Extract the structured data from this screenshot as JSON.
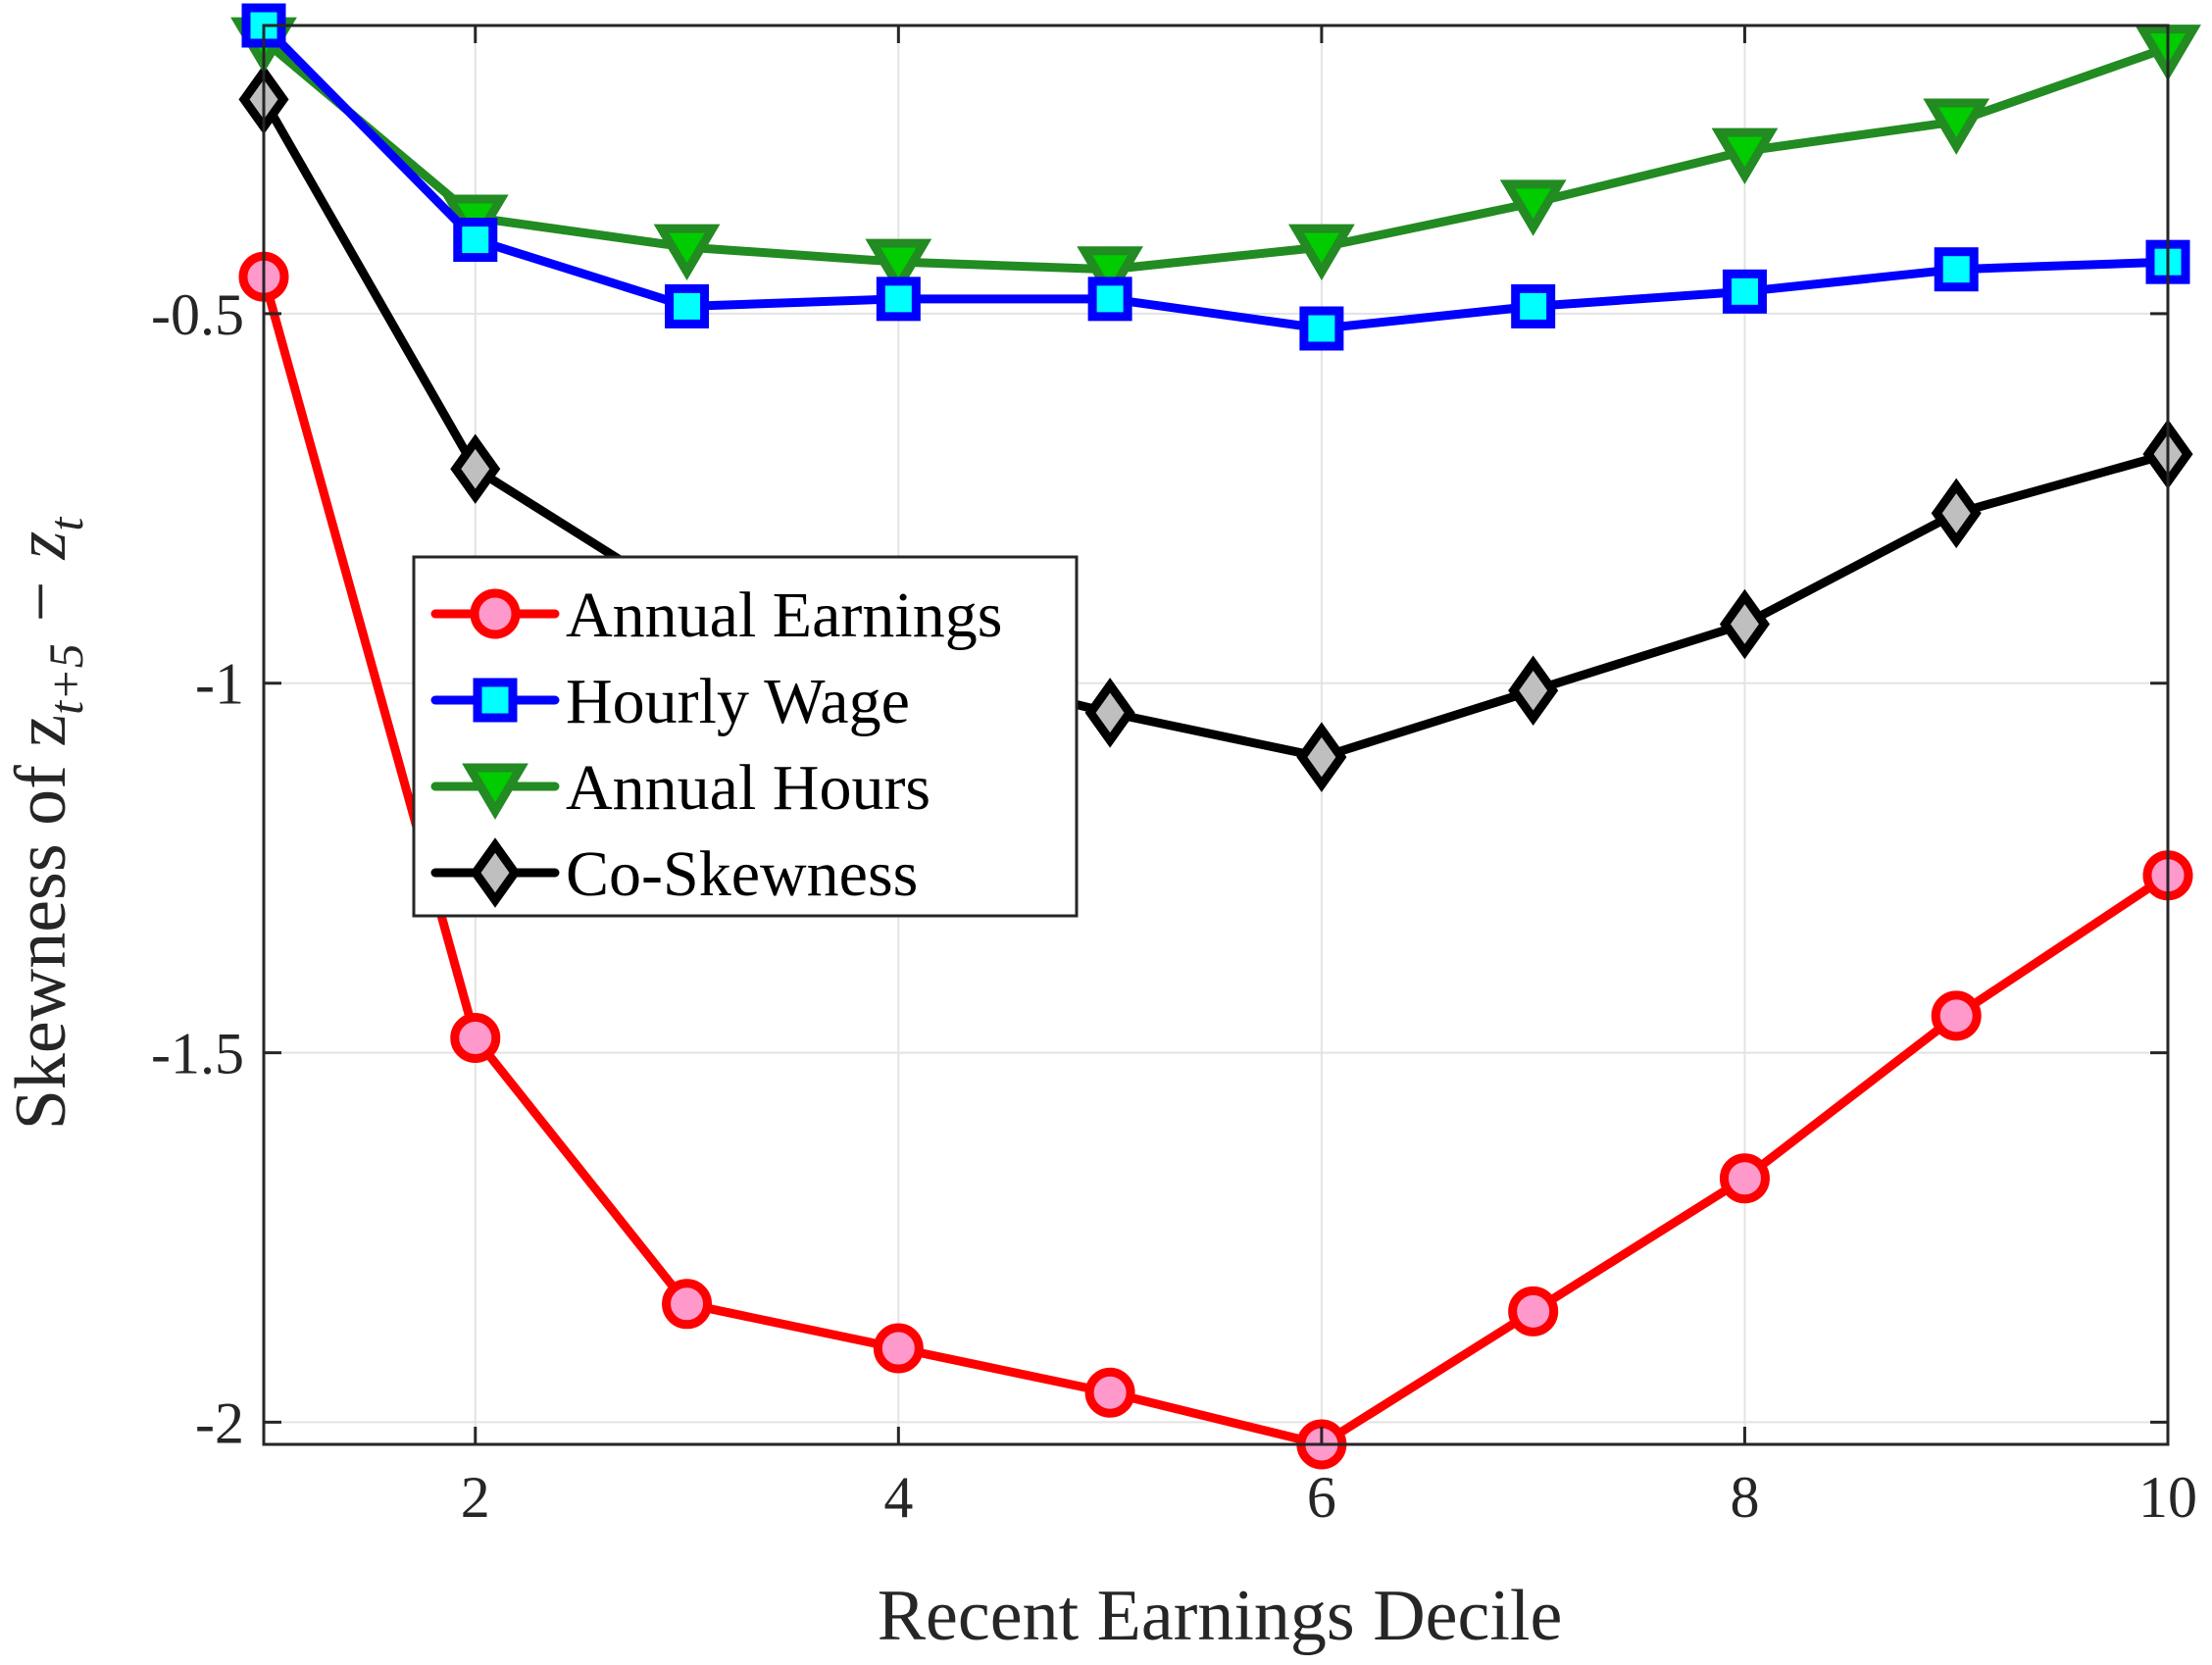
{
  "chart_data": {
    "type": "line",
    "xlabel": "Recent Earnings Decile",
    "ylabel": "Skewness of z",
    "ylabel_math": {
      "sub1": "t+5",
      "minus": "−",
      "var2": "z",
      "sub2": "t"
    },
    "xlim": [
      1,
      10
    ],
    "ylim": [
      -2.03,
      -0.11
    ],
    "xticks": [
      2,
      4,
      6,
      8,
      10
    ],
    "yticks": [
      -2,
      -1.5,
      -1,
      -0.5
    ],
    "ytick_labels": [
      "-2",
      "-1.5",
      "-1",
      "-0.5"
    ],
    "xtick_labels": [
      "2",
      "4",
      "6",
      "8",
      "10"
    ],
    "grid": true,
    "legend_position": "center-left",
    "x": [
      1,
      2,
      3,
      4,
      5,
      6,
      7,
      8,
      9,
      10
    ],
    "series": [
      {
        "name": "Annual Earnings",
        "marker": "circle",
        "line_color": "#ff0000",
        "marker_fill": "#ff99cc",
        "values": [
          -0.45,
          -1.48,
          -1.84,
          -1.9,
          -1.96,
          -2.03,
          -1.85,
          -1.67,
          -1.45,
          -1.26
        ]
      },
      {
        "name": "Hourly Wage",
        "marker": "square",
        "line_color": "#0000ff",
        "marker_fill": "#00ffff",
        "values": [
          -0.11,
          -0.4,
          -0.49,
          -0.48,
          -0.48,
          -0.52,
          -0.49,
          -0.47,
          -0.44,
          -0.43
        ]
      },
      {
        "name": "Annual Hours",
        "marker": "triangle-down",
        "line_color": "#228b22",
        "marker_fill": "#00cc00",
        "values": [
          -0.13,
          -0.37,
          -0.41,
          -0.43,
          -0.44,
          -0.41,
          -0.35,
          -0.28,
          -0.24,
          -0.14
        ]
      },
      {
        "name": "Co-Skewness",
        "marker": "diamond",
        "line_color": "#000000",
        "marker_fill": "#bfbfbf",
        "values": [
          -0.21,
          -0.71,
          -0.89,
          -0.97,
          -1.04,
          -1.1,
          -1.01,
          -0.92,
          -0.77,
          -0.69
        ]
      }
    ]
  }
}
